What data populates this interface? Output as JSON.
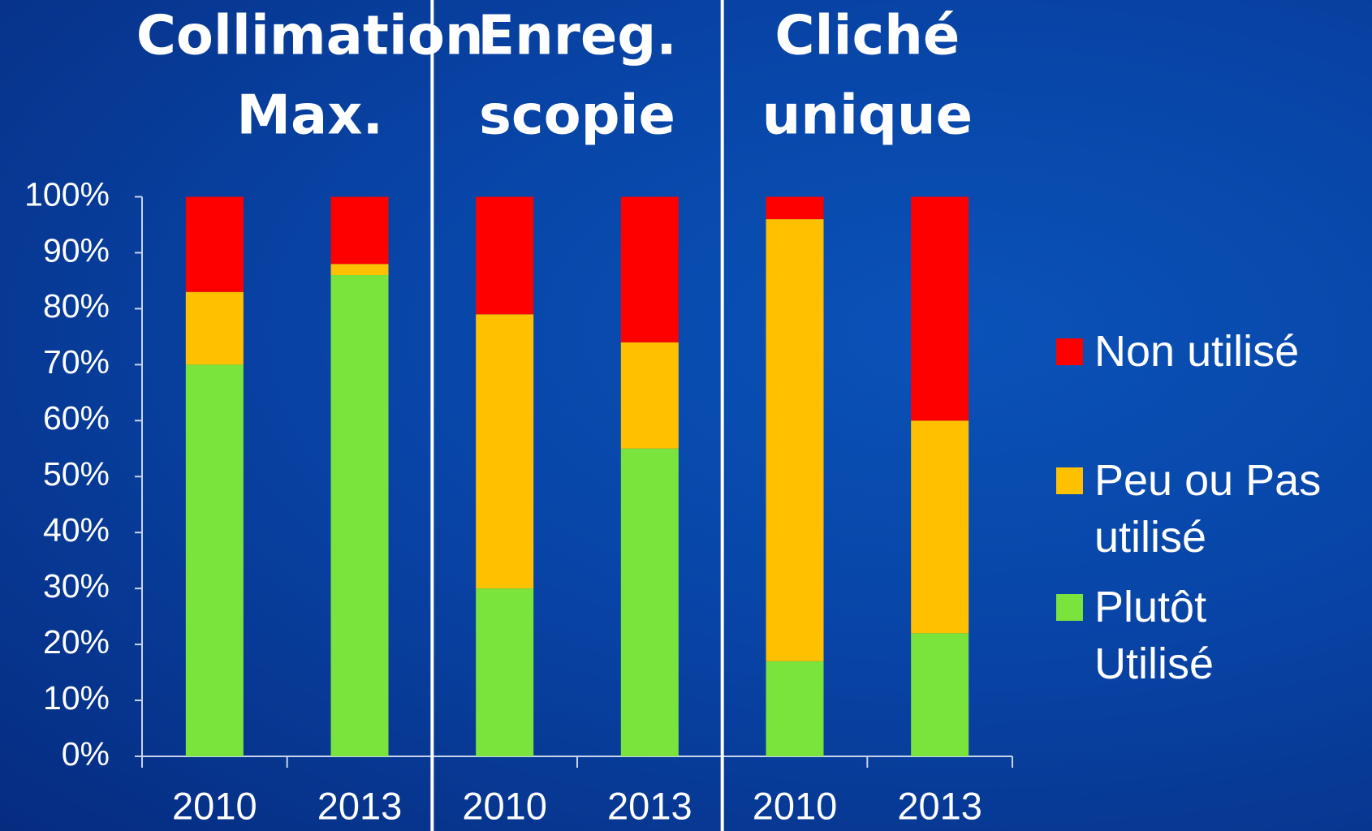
{
  "chart_data": {
    "type": "stacked_bar",
    "groups": [
      {
        "title": [
          "Collimation",
          "Max."
        ]
      },
      {
        "title": [
          "Enreg.",
          "scopie"
        ]
      },
      {
        "title": [
          "Cliché",
          "unique"
        ]
      }
    ],
    "categories": [
      "2010",
      "2013",
      "2010",
      "2013",
      "2010",
      "2013"
    ],
    "series": [
      {
        "name": "Plutôt Utilisé",
        "color": "#7ae43c",
        "values": [
          70,
          86,
          30,
          55,
          17,
          22
        ]
      },
      {
        "name": "Peu ou Pas utilisé",
        "color": "#ffc000",
        "values": [
          13,
          2,
          49,
          19,
          79,
          38
        ]
      },
      {
        "name": "Non utilisé",
        "color": "#ff0000",
        "values": [
          17,
          12,
          21,
          26,
          4,
          40
        ]
      }
    ],
    "ylim": [
      0,
      100
    ],
    "yticks": [
      {
        "value": 0,
        "label": "0%"
      },
      {
        "value": 10,
        "label": "10%"
      },
      {
        "value": 20,
        "label": "20%"
      },
      {
        "value": 30,
        "label": "30%"
      },
      {
        "value": 40,
        "label": "40%"
      },
      {
        "value": 50,
        "label": "50%"
      },
      {
        "value": 60,
        "label": "60%"
      },
      {
        "value": 70,
        "label": "70%"
      },
      {
        "value": 80,
        "label": "80%"
      },
      {
        "value": 90,
        "label": "90%"
      },
      {
        "value": 100,
        "label": "100%"
      }
    ]
  }
}
